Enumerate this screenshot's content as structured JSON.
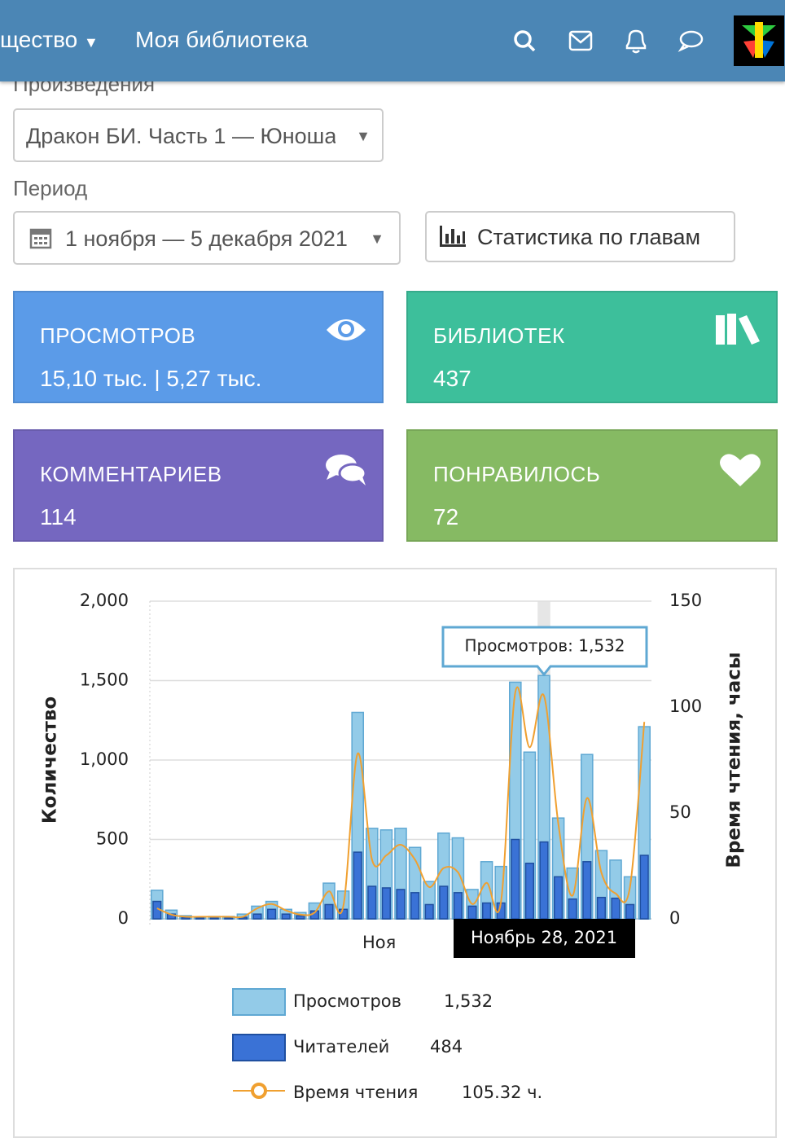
{
  "nav": {
    "items": [
      "щество",
      "Моя библиотека"
    ]
  },
  "filters": {
    "work_label": "Произведения",
    "work_value": "Дракон БИ. Часть 1 — Юноша",
    "period_label": "Период",
    "period_value": "1 ноября — 5 декабря 2021",
    "chapters_button": "Статистика по главам"
  },
  "cards": [
    {
      "title": "ПРОСМОТРОВ",
      "value": "15,10 тыс. | 5,27 тыс."
    },
    {
      "title": "БИБЛИОТЕК",
      "value": "437"
    },
    {
      "title": "КОММЕНТАРИЕВ",
      "value": "114"
    },
    {
      "title": "ПОНРАВИЛОСЬ",
      "value": "72"
    }
  ],
  "chart_data": {
    "type": "bar",
    "categories": [
      null,
      null,
      null,
      null,
      null,
      null,
      null,
      null,
      null,
      null,
      null,
      null,
      null,
      null,
      null,
      "Ноя",
      null,
      null,
      null,
      null,
      null,
      null,
      null,
      null,
      null,
      null,
      null,
      null,
      null,
      null,
      null,
      null,
      null,
      null,
      null
    ],
    "series": [
      {
        "name": "Просмотров",
        "color": "#93cbe8",
        "legend_value": "1,532",
        "values": [
          180,
          55,
          20,
          10,
          15,
          15,
          30,
          80,
          110,
          60,
          40,
          100,
          225,
          175,
          1300,
          570,
          560,
          570,
          450,
          235,
          540,
          510,
          185,
          360,
          330,
          1490,
          1050,
          1532,
          635,
          320,
          1035,
          430,
          370,
          265,
          1210
        ]
      },
      {
        "name": "Читателей",
        "color": "#3a72d6",
        "legend_value": "484",
        "values": [
          110,
          30,
          10,
          5,
          5,
          5,
          10,
          30,
          60,
          30,
          20,
          50,
          90,
          60,
          420,
          205,
          195,
          185,
          165,
          90,
          205,
          165,
          80,
          100,
          100,
          500,
          350,
          484,
          265,
          125,
          360,
          135,
          130,
          90,
          400
        ]
      },
      {
        "name": "Время чтения",
        "type": "line",
        "axis": "y2",
        "color": "#f0a030",
        "legend_value": "105.32 ч.",
        "values": [
          5,
          2,
          1,
          1,
          1,
          1,
          1,
          5,
          7,
          4,
          2,
          3,
          13,
          6,
          78,
          28,
          30,
          35,
          28,
          15,
          24,
          22,
          7,
          17,
          8,
          107,
          81,
          105.32,
          45,
          11,
          57,
          22,
          12,
          15,
          93
        ]
      }
    ],
    "ylabel": "Количество",
    "y2label": "Время чтения, часы",
    "ylim": [
      0,
      2000
    ],
    "yticks": [
      0,
      500,
      {
        "value": 1000,
        "label": "1,000"
      },
      {
        "value": 1500,
        "label": "1,500"
      },
      {
        "value": 2000,
        "label": "2,000"
      }
    ],
    "y2lim": [
      0,
      150
    ],
    "y2ticks": [
      0,
      50,
      100,
      150
    ],
    "grid": true,
    "tooltip": "Просмотров: 1,532",
    "crosshair_label": "Ноябрь 28, 2021"
  }
}
